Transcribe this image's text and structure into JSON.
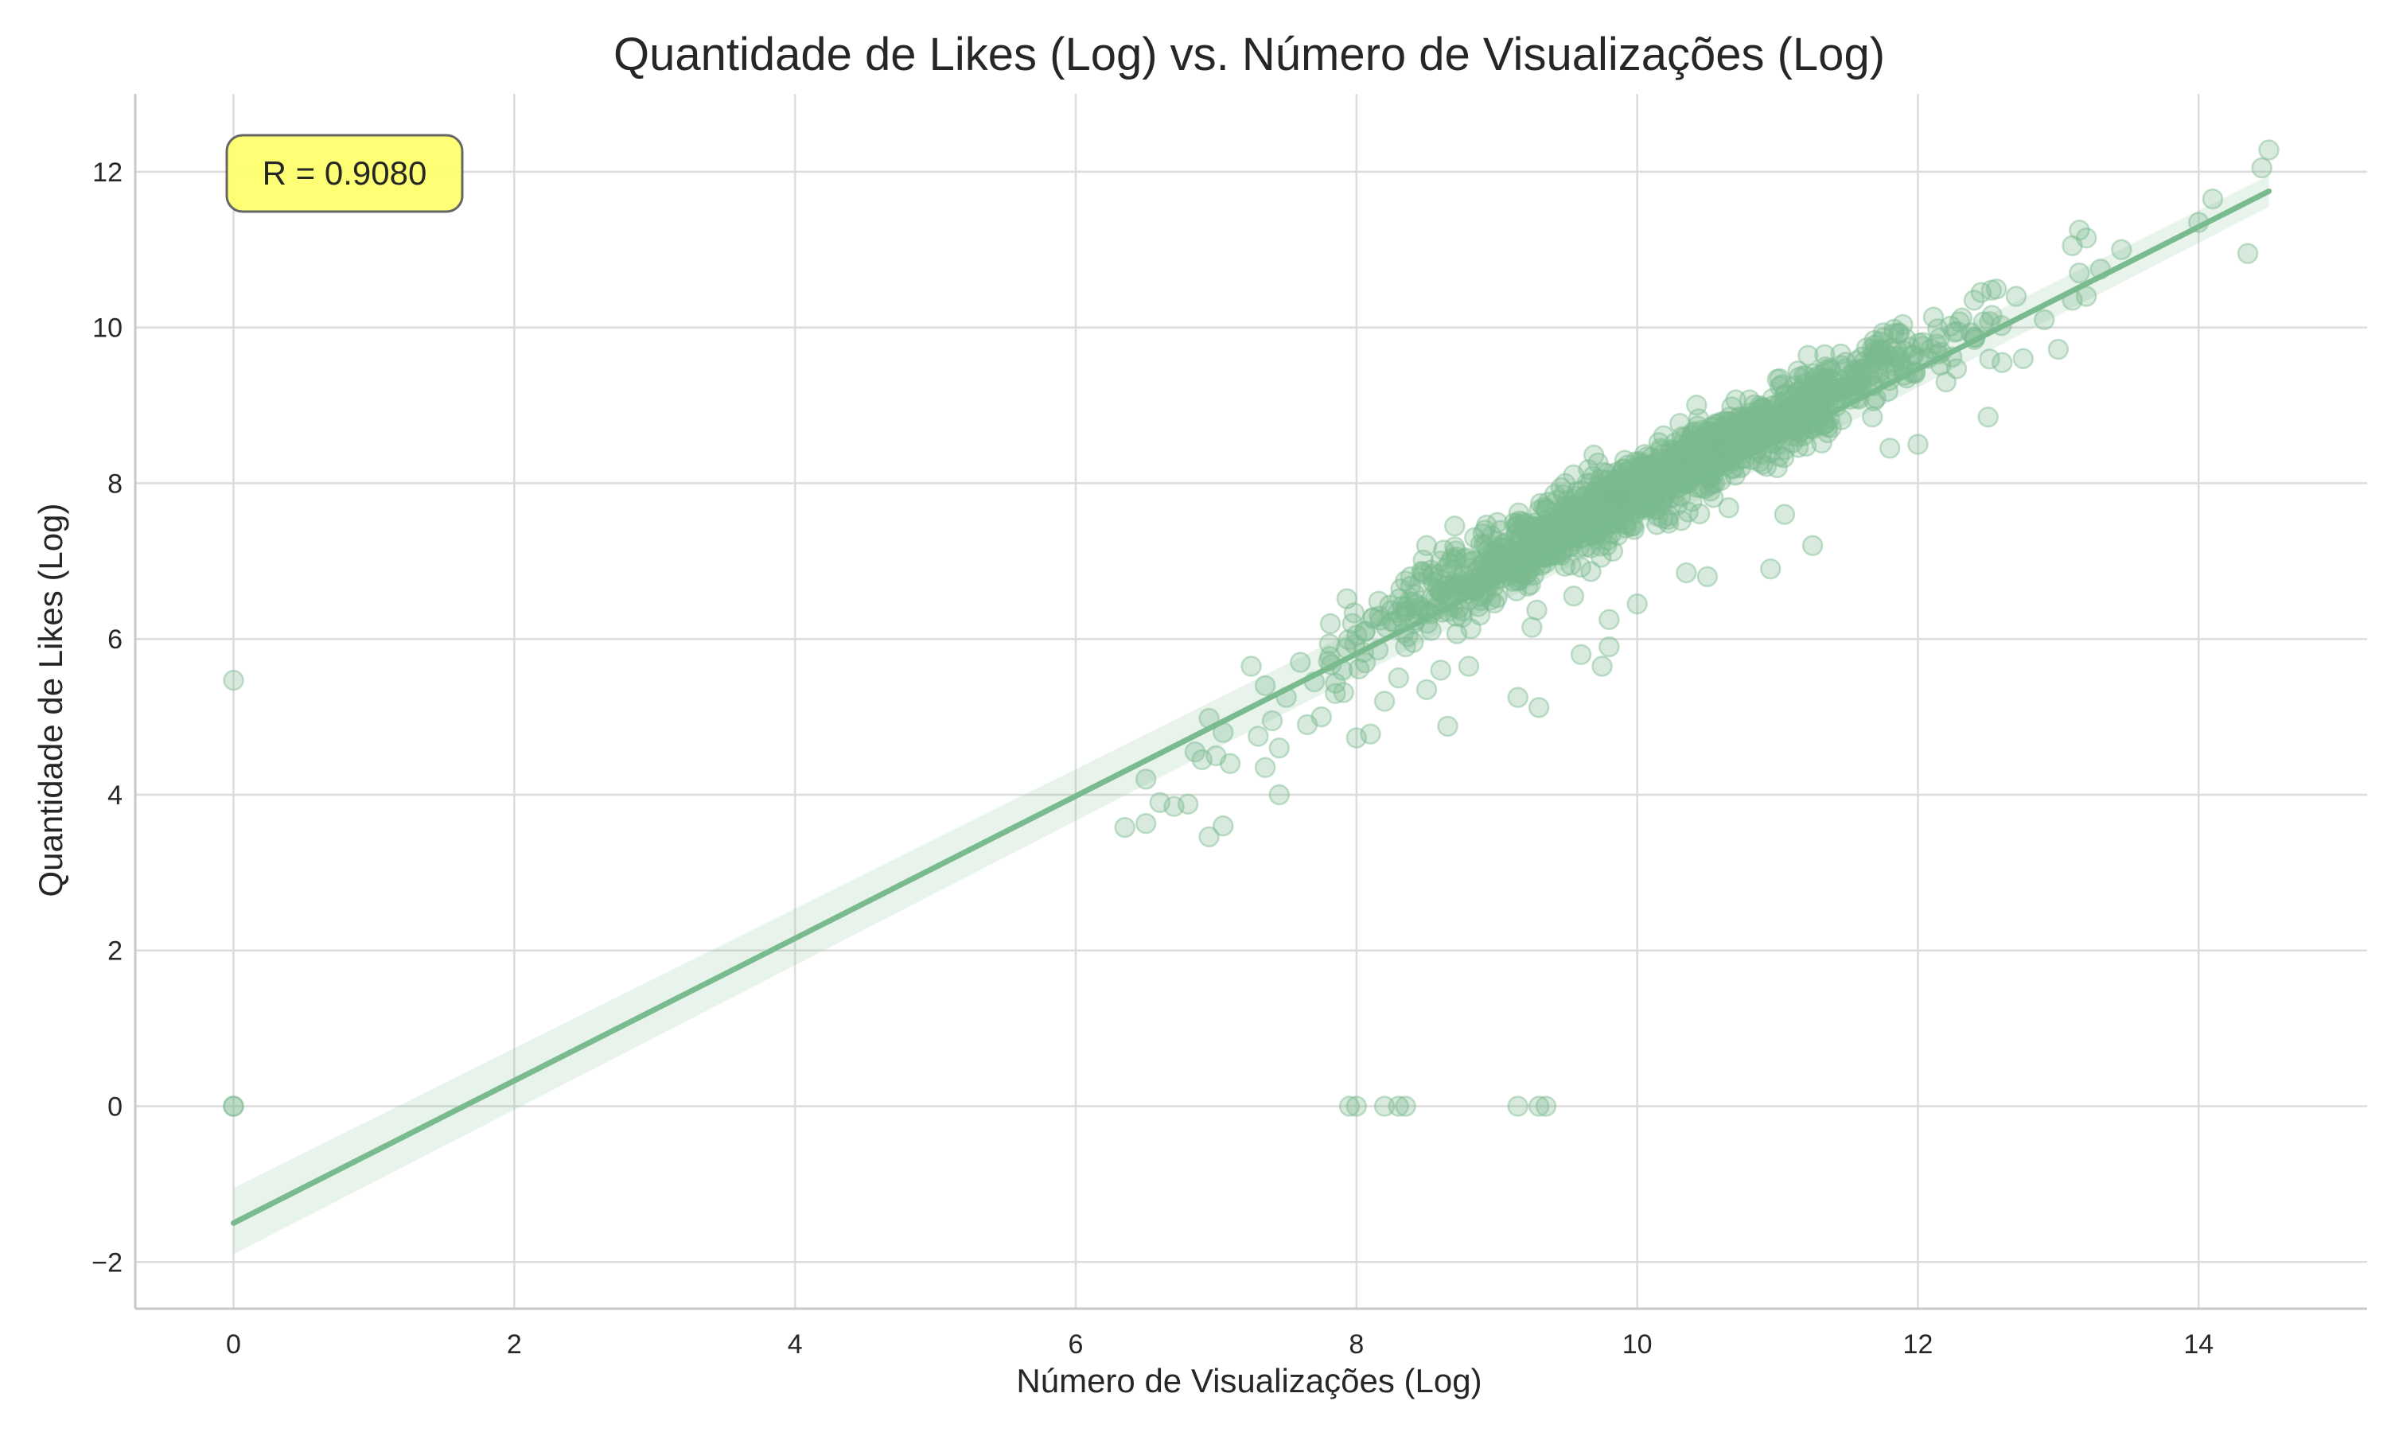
{
  "chart_data": {
    "type": "scatter",
    "title": "Quantidade de Likes (Log) vs. Número de Visualizações (Log)",
    "xlabel": "Número de Visualizações (Log)",
    "ylabel": "Quantidade de Likes (Log)",
    "xlim": [
      -0.7,
      15.2
    ],
    "ylim": [
      -2.6,
      13.0
    ],
    "x_ticks": [
      0,
      2,
      4,
      6,
      8,
      10,
      12,
      14
    ],
    "y_ticks": [
      -2,
      0,
      2,
      4,
      6,
      8,
      10,
      12
    ],
    "grid": true,
    "annotation": "R = 0.9080",
    "regression_line": {
      "x": [
        0,
        14.5
      ],
      "y": [
        -1.5,
        11.75
      ]
    },
    "confidence_band": {
      "x": [
        0,
        14.5
      ],
      "y_lower": [
        -1.9,
        11.55
      ],
      "y_upper": [
        -1.05,
        11.95
      ]
    },
    "dense_cluster": {
      "x_range": [
        7.8,
        12.6
      ],
      "slope": 0.914,
      "intercept": -1.5
    },
    "points": [
      [
        0,
        5.47
      ],
      [
        0,
        0
      ],
      [
        0,
        0
      ],
      [
        6.35,
        3.58
      ],
      [
        6.5,
        3.63
      ],
      [
        6.5,
        4.2
      ],
      [
        6.6,
        3.9
      ],
      [
        6.7,
        3.85
      ],
      [
        6.8,
        3.88
      ],
      [
        6.85,
        4.55
      ],
      [
        6.9,
        4.45
      ],
      [
        6.95,
        3.46
      ],
      [
        6.95,
        4.98
      ],
      [
        7.0,
        4.5
      ],
      [
        7.05,
        3.6
      ],
      [
        7.05,
        4.8
      ],
      [
        7.1,
        4.4
      ],
      [
        7.25,
        5.65
      ],
      [
        7.3,
        4.75
      ],
      [
        7.35,
        4.35
      ],
      [
        7.35,
        5.4
      ],
      [
        7.4,
        4.95
      ],
      [
        7.45,
        4.0
      ],
      [
        7.45,
        4.6
      ],
      [
        7.5,
        5.25
      ],
      [
        7.6,
        5.7
      ],
      [
        7.65,
        4.9
      ],
      [
        7.7,
        5.45
      ],
      [
        7.75,
        5.0
      ],
      [
        7.85,
        5.3
      ],
      [
        7.9,
        5.6
      ],
      [
        8.0,
        4.73
      ],
      [
        8.1,
        4.78
      ],
      [
        8.2,
        5.2
      ],
      [
        8.3,
        5.5
      ],
      [
        8.35,
        5.9
      ],
      [
        8.5,
        5.35
      ],
      [
        8.6,
        5.6
      ],
      [
        8.65,
        4.88
      ],
      [
        8.8,
        5.65
      ],
      [
        8.7,
        7.45
      ],
      [
        8.6,
        7.0
      ],
      [
        8.5,
        7.2
      ],
      [
        9.15,
        5.25
      ],
      [
        9.3,
        5.12
      ],
      [
        9.25,
        6.15
      ],
      [
        9.6,
        5.8
      ],
      [
        9.8,
        5.9
      ],
      [
        9.75,
        5.65
      ],
      [
        9.8,
        6.25
      ],
      [
        10.0,
        6.45
      ],
      [
        10.35,
        6.85
      ],
      [
        10.5,
        6.8
      ],
      [
        10.95,
        6.9
      ],
      [
        11.25,
        7.2
      ],
      [
        11.05,
        7.6
      ],
      [
        11.8,
        8.45
      ],
      [
        12.0,
        8.5
      ],
      [
        12.5,
        8.85
      ],
      [
        12.2,
        9.3
      ],
      [
        12.6,
        9.55
      ],
      [
        12.75,
        9.6
      ],
      [
        13.0,
        9.72
      ],
      [
        12.4,
        10.35
      ],
      [
        12.45,
        10.45
      ],
      [
        12.7,
        10.4
      ],
      [
        12.9,
        10.1
      ],
      [
        13.1,
        10.35
      ],
      [
        13.15,
        10.7
      ],
      [
        13.1,
        11.05
      ],
      [
        13.2,
        11.15
      ],
      [
        13.15,
        11.25
      ],
      [
        13.3,
        10.75
      ],
      [
        13.45,
        11.0
      ],
      [
        13.2,
        10.4
      ],
      [
        14.0,
        11.35
      ],
      [
        14.1,
        11.65
      ],
      [
        14.35,
        10.95
      ],
      [
        14.45,
        12.05
      ],
      [
        14.5,
        12.28
      ],
      [
        7.95,
        0
      ],
      [
        8.0,
        0
      ],
      [
        8.2,
        0
      ],
      [
        8.3,
        0
      ],
      [
        8.35,
        0
      ],
      [
        9.15,
        0
      ],
      [
        9.3,
        0
      ],
      [
        9.35,
        0
      ]
    ]
  }
}
